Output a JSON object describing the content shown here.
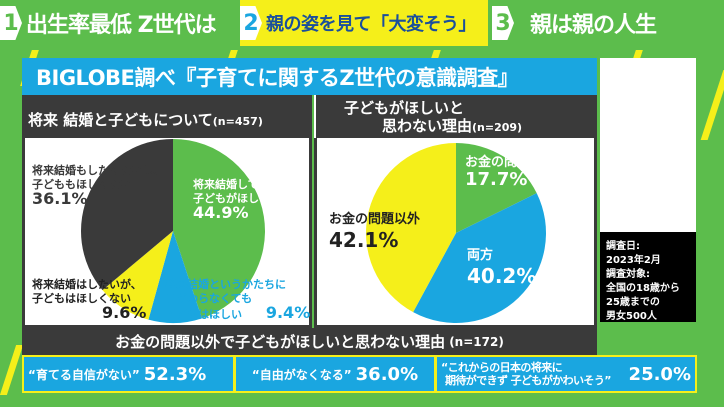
{
  "header": {
    "tabs": [
      {
        "num": "1",
        "label": "出生率最低 Z世代は"
      },
      {
        "num": "2",
        "label": "親の姿を見て「大変そう」"
      },
      {
        "num": "3",
        "label": "親は親の人生"
      }
    ]
  },
  "title": "BIGLOBE調べ『子育てに関するZ世代の意識調査』",
  "left": {
    "heading": "将来 結婚と子どもについて",
    "n": "(n=457)"
  },
  "right": {
    "heading_line1": "子どもがほしいと",
    "heading_line2": "思わない理由",
    "n": "(n=209)"
  },
  "chart_data": [
    {
      "type": "pie",
      "slices": [
        {
          "label": "将来結婚して、子どもがほしい",
          "value": 44.9,
          "display": "44.9%",
          "color": "#5cbd4c"
        },
        {
          "label": "将来結婚というかたちにこだわらなくても子どもはほしい",
          "value": 9.4,
          "display": "9.4%",
          "color": "#1aa6e0"
        },
        {
          "label": "将来結婚はしたいが、子どもはほしくない",
          "value": 9.6,
          "display": "9.6%",
          "color": "#f5ef1a"
        },
        {
          "label": "将来結婚もしたくないし、子どももほしくない",
          "value": 36.1,
          "display": "36.1%",
          "color": "#3a3a3a"
        }
      ]
    },
    {
      "type": "pie",
      "slices": [
        {
          "label": "お金の問題",
          "value": 17.7,
          "display": "17.7%",
          "color": "#5cbd4c"
        },
        {
          "label": "両方",
          "value": 40.2,
          "display": "40.2%",
          "color": "#1aa6e0"
        },
        {
          "label": "お金の問題以外",
          "value": 42.1,
          "display": "42.1%",
          "color": "#f5ef1a"
        }
      ]
    }
  ],
  "pie1_labels": {
    "green1": "将来結婚して、",
    "green2": "子どもがほしい",
    "blue1": "将来結婚というかたちに",
    "blue2": "こだわらなくても",
    "blue3": "子どもはほしい",
    "yellow1": "将来結婚はしたいが、",
    "yellow2": "子どもはほしくない",
    "dark1": "将来結婚もしたくないし、",
    "dark2": "子どももほしくない"
  },
  "note": {
    "l1": "調査日:",
    "l2": "2023年2月",
    "l3": "調査対象:",
    "l4": "全国の18歳から",
    "l5": "25歳までの",
    "l6": "男女500人"
  },
  "bottom": {
    "heading": "お金の問題以外で子どもがほしいと思わない理由",
    "n": "(n=172)",
    "items": [
      {
        "label": "“育てる自信がない”",
        "value": "52.3%"
      },
      {
        "label": "“自由がなくなる”",
        "value": "36.0%"
      },
      {
        "label1": "“これからの日本の将来に",
        "label2": "期待ができず 子どもがかわいそう”",
        "value": "25.0%"
      }
    ]
  }
}
